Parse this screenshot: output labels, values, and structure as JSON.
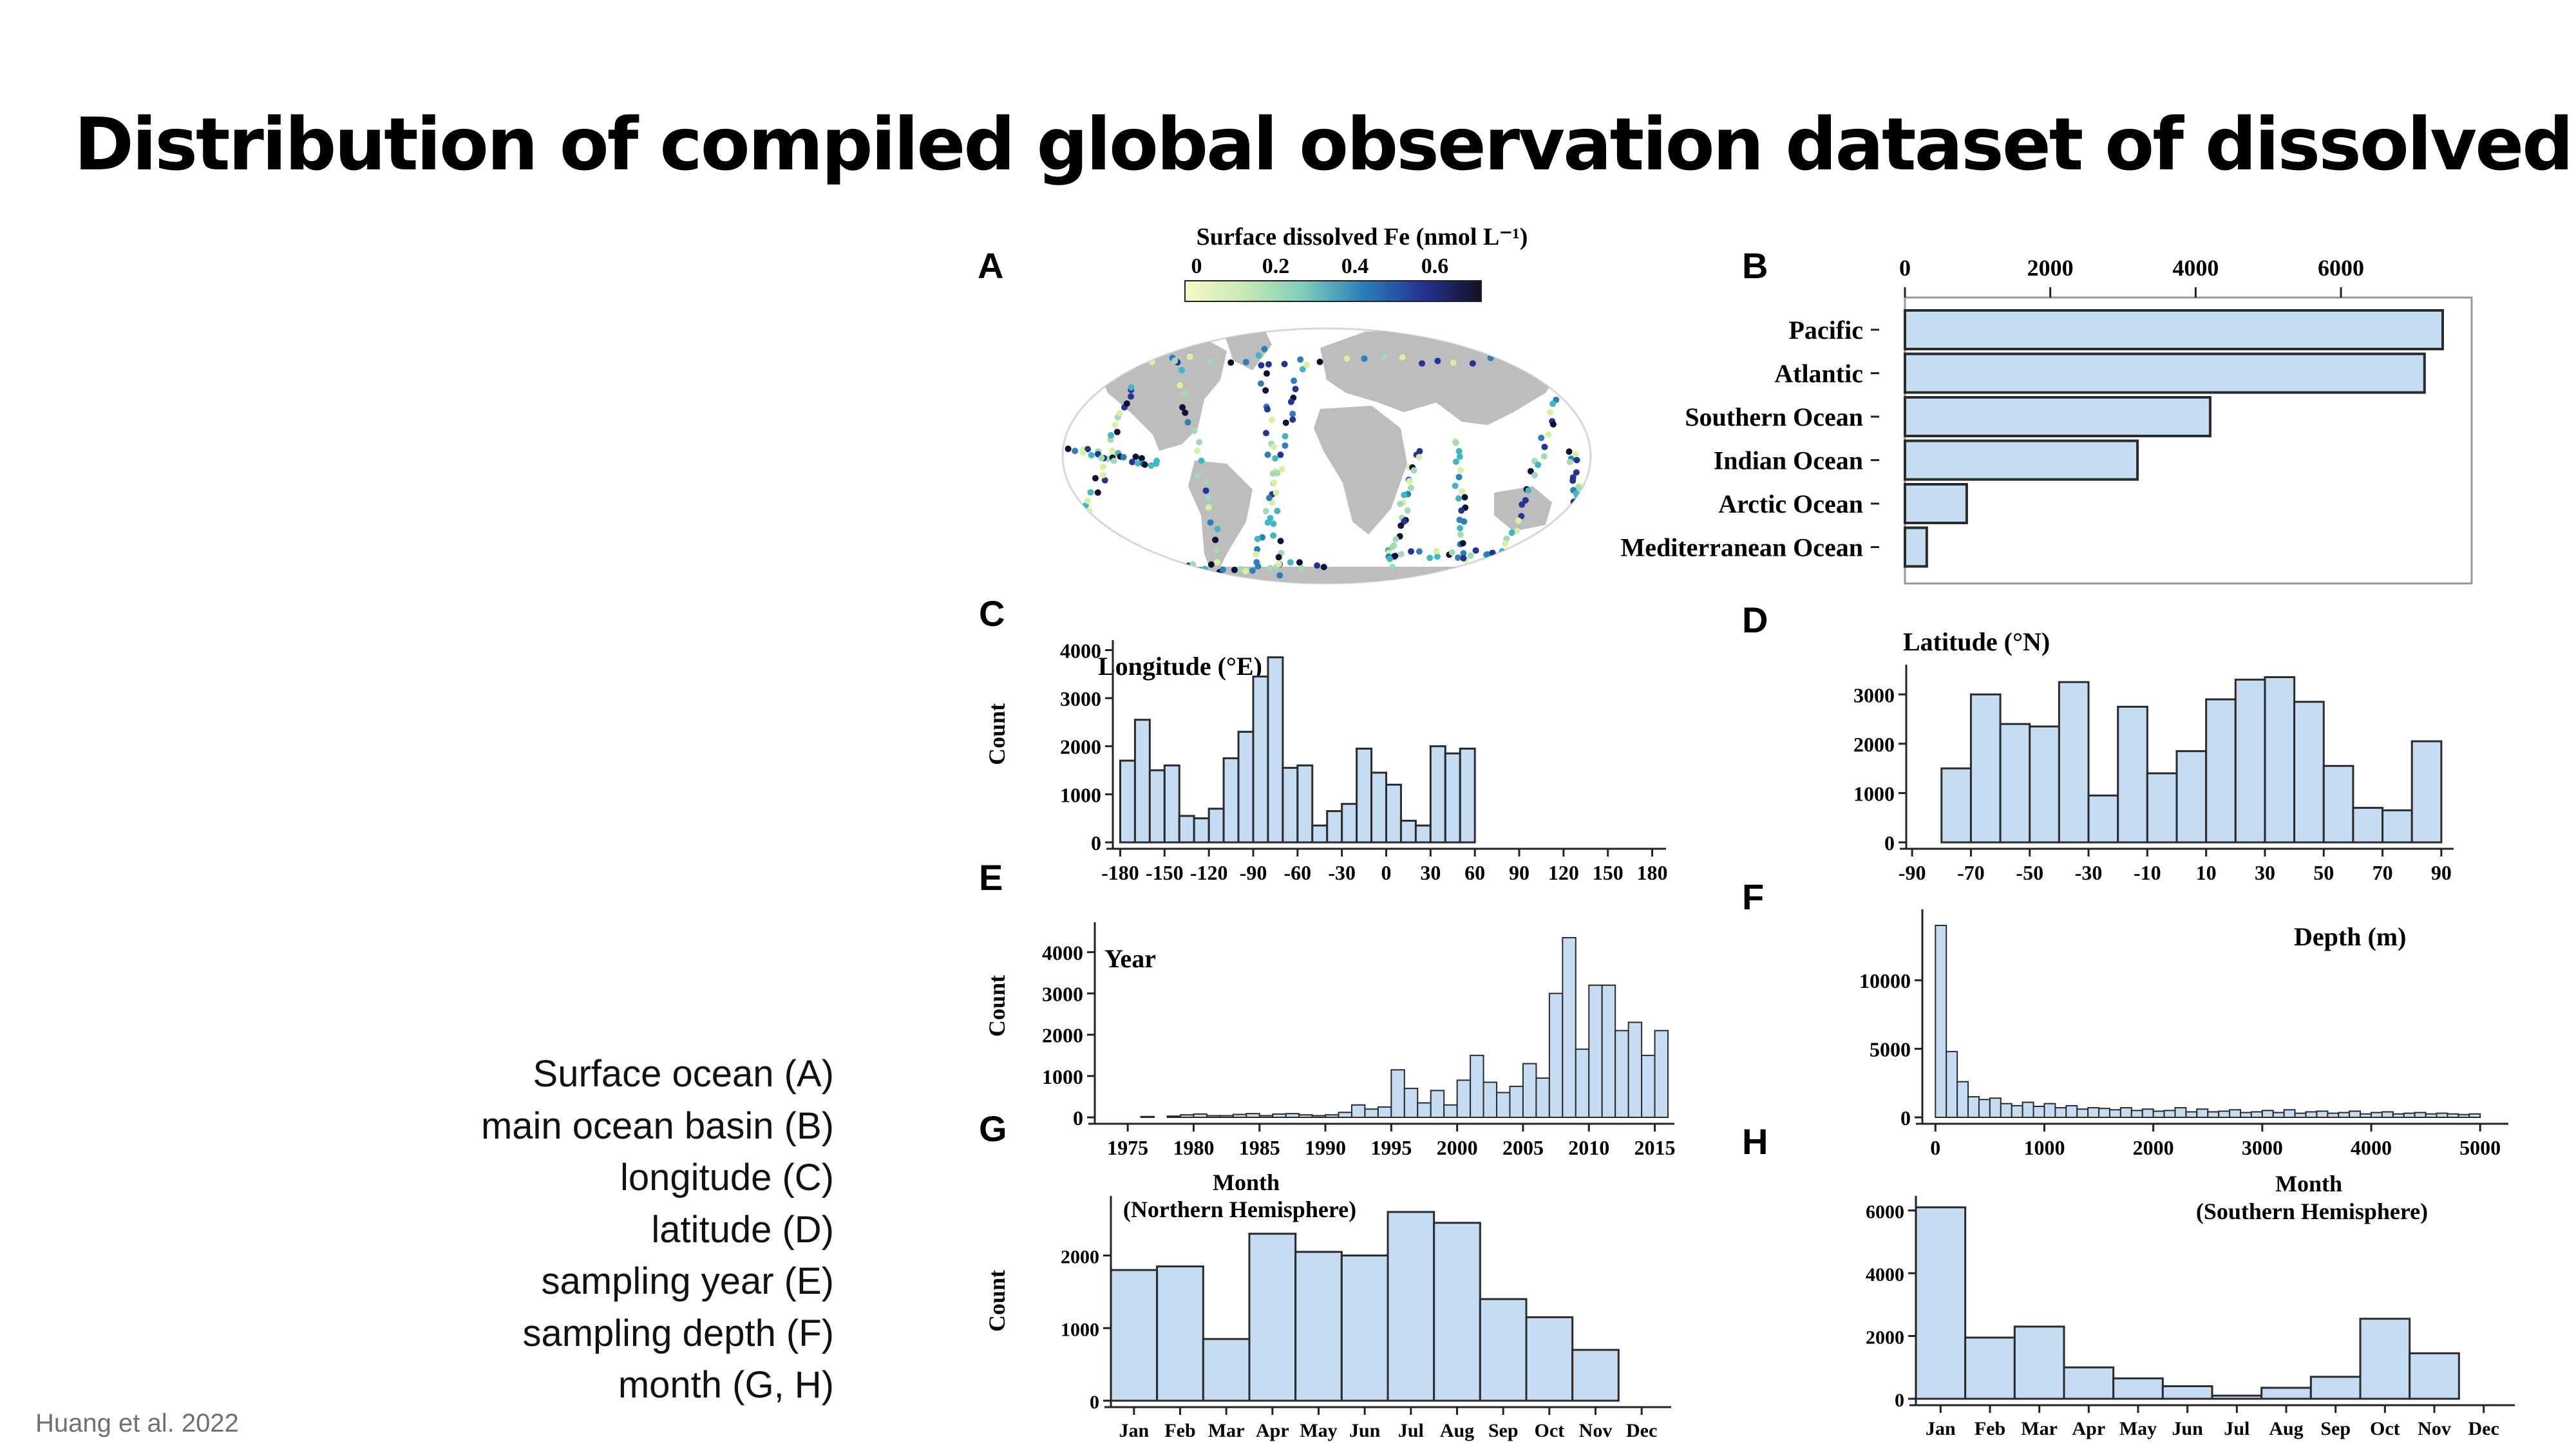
{
  "slide": {
    "title": "Distribution of compiled global observation dataset of dissolved Fe",
    "legend_lines": [
      "Surface ocean (A)",
      "main ocean basin (B)",
      "longitude (C)",
      "latitude (D)",
      "sampling year (E)",
      "sampling depth (F)",
      "month (G, H)"
    ],
    "credit": "Huang et al. 2022"
  },
  "colors": {
    "bar_fill": "#c6dcf3",
    "bar_stroke": "#2b2b2b",
    "land": "#bdbdbd"
  },
  "chart_data": [
    {
      "id": "A",
      "type": "map",
      "panel_label": "A",
      "title": "Surface dissolved Fe (nmol L⁻¹)",
      "colorbar_ticks": [
        "0",
        "0.2",
        "0.4",
        "0.6"
      ],
      "colorbar_range": [
        0,
        0.7
      ]
    },
    {
      "id": "B",
      "type": "bar",
      "orientation": "horizontal",
      "panel_label": "B",
      "categories": [
        "Pacific",
        "Atlantic",
        "Southern Ocean",
        "Indian Ocean",
        "Arctic Ocean",
        "Mediterranean Ocean"
      ],
      "values": [
        7400,
        7150,
        4200,
        3200,
        850,
        300
      ],
      "xlim": [
        0,
        7800
      ],
      "xticks": [
        0,
        2000,
        4000,
        6000
      ]
    },
    {
      "id": "C",
      "type": "bar",
      "panel_label": "C",
      "annotation": "Longitude (°E)",
      "ylabel": "Count",
      "bin_start": -180,
      "bin_width": 10,
      "values": [
        1700,
        2550,
        1500,
        1600,
        550,
        500,
        700,
        1750,
        2300,
        3450,
        3850,
        1550,
        1600,
        350,
        650,
        800,
        1950,
        1450,
        1200,
        450,
        350,
        2000,
        1850,
        1950
      ],
      "xlim": [
        -185,
        185
      ],
      "ylim": [
        0,
        4100
      ],
      "xticks": [
        -180,
        -150,
        -120,
        -90,
        -60,
        -30,
        0,
        30,
        60,
        90,
        120,
        150,
        180
      ],
      "xtick_labels": [
        "-180",
        "-150",
        "-120",
        "-90",
        "-60",
        "-30",
        "0",
        "30",
        "60",
        "90",
        "120",
        "150",
        "180"
      ],
      "yticks": [
        0,
        1000,
        2000,
        3000,
        4000
      ]
    },
    {
      "id": "D",
      "type": "bar",
      "panel_label": "D",
      "annotation": "Latitude (°N)",
      "bin_start": -90,
      "bin_width": 10,
      "values": [
        0,
        1500,
        3000,
        2400,
        2350,
        3250,
        950,
        2750,
        1400,
        1850,
        2900,
        3300,
        3350,
        2850,
        1550,
        700,
        650,
        2050
      ],
      "xlim": [
        -92,
        92
      ],
      "ylim": [
        0,
        3500
      ],
      "xticks": [
        -90,
        -70,
        -50,
        -30,
        -10,
        10,
        30,
        50,
        70,
        90
      ],
      "xtick_labels": [
        "-90",
        "-70",
        "-50",
        "-30",
        "-10",
        "10",
        "30",
        "50",
        "70",
        "90"
      ],
      "yticks": [
        0,
        1000,
        2000,
        3000
      ]
    },
    {
      "id": "E",
      "type": "bar",
      "panel_label": "E",
      "annotation": "Year",
      "ylabel": "Count",
      "bin_start": 1974,
      "bin_width": 1,
      "values": [
        0,
        0,
        20,
        0,
        30,
        60,
        80,
        40,
        40,
        70,
        90,
        40,
        80,
        90,
        60,
        40,
        60,
        120,
        300,
        200,
        250,
        1150,
        700,
        350,
        650,
        300,
        900,
        1500,
        850,
        600,
        750,
        1300,
        950,
        3000,
        4350,
        1650,
        3200,
        3200,
        2100,
        2300,
        1500,
        2100
      ],
      "xlim": [
        1972.5,
        2016
      ],
      "ylim": [
        0,
        4600
      ],
      "xticks": [
        1975,
        1980,
        1985,
        1990,
        1995,
        2000,
        2005,
        2010,
        2015
      ],
      "xtick_labels": [
        "1975",
        "1980",
        "1985",
        "1990",
        "1995",
        "2000",
        "2005",
        "2010",
        "2015"
      ],
      "yticks": [
        0,
        1000,
        2000,
        3000,
        4000
      ]
    },
    {
      "id": "F",
      "type": "bar",
      "panel_label": "F",
      "annotation": "Depth (m)",
      "bin_start": 0,
      "bin_width": 100,
      "values": [
        14000,
        4800,
        2600,
        1500,
        1300,
        1400,
        1000,
        850,
        1100,
        800,
        1000,
        700,
        850,
        600,
        700,
        650,
        550,
        700,
        500,
        600,
        450,
        500,
        700,
        400,
        600,
        400,
        450,
        550,
        350,
        400,
        500,
        350,
        550,
        300,
        400,
        450,
        300,
        350,
        450,
        250,
        350,
        400,
        250,
        300,
        350,
        250,
        300,
        250,
        200,
        250
      ],
      "xlim": [
        -120,
        5200
      ],
      "ylim": [
        0,
        14800
      ],
      "xticks": [
        0,
        1000,
        2000,
        3000,
        4000,
        5000
      ],
      "xtick_labels": [
        "0",
        "1000",
        "2000",
        "3000",
        "4000",
        "5000"
      ],
      "yticks": [
        0,
        5000,
        10000
      ]
    },
    {
      "id": "G",
      "type": "bar",
      "panel_label": "G",
      "annotation": "Month",
      "annotation2": "(Northern Hemisphere)",
      "ylabel": "Count",
      "categories": [
        "Jan",
        "Feb",
        "Mar",
        "Apr",
        "May",
        "Jun",
        "Jul",
        "Aug",
        "Sep",
        "Oct",
        "Nov",
        "Dec"
      ],
      "values": [
        1800,
        1850,
        850,
        2300,
        2050,
        2000,
        2600,
        2450,
        1400,
        1150,
        700,
        0
      ],
      "ylim": [
        0,
        2750
      ],
      "yticks": [
        0,
        1000,
        2000
      ]
    },
    {
      "id": "H",
      "type": "bar",
      "panel_label": "H",
      "annotation": "Month",
      "annotation2": "(Southern Hemisphere)",
      "categories": [
        "Jan",
        "Feb",
        "Mar",
        "Apr",
        "May",
        "Jun",
        "Jul",
        "Aug",
        "Sep",
        "Oct",
        "Nov",
        "Dec"
      ],
      "values": [
        6100,
        1950,
        2300,
        1000,
        650,
        400,
        100,
        350,
        700,
        2550,
        1450,
        0
      ],
      "ylim": [
        0,
        6300
      ],
      "yticks": [
        0,
        2000,
        4000,
        6000
      ]
    }
  ]
}
